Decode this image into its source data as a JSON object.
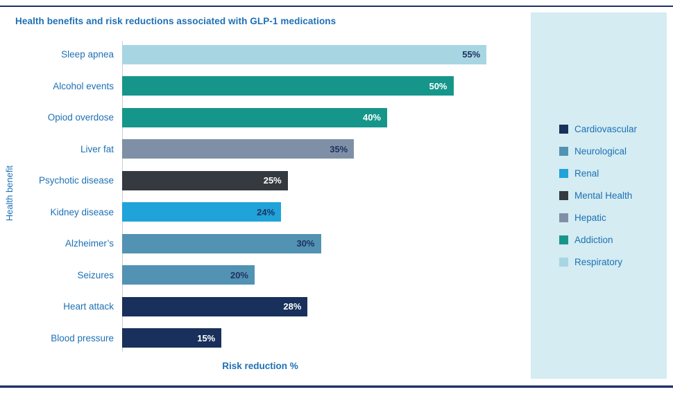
{
  "chart_data": {
    "type": "bar",
    "orientation": "horizontal",
    "title": "Health benefits and risk reductions associated with GLP-1 medications",
    "xlabel": "Risk reduction %",
    "ylabel": "Health benefit",
    "xlim": [
      0,
      60
    ],
    "grid": false,
    "legend_position": "right",
    "categories": [
      "Sleep apnea",
      "Alcohol events",
      "Opiod overdose",
      "Liver fat",
      "Psychotic disease",
      "Kidney disease",
      "Alzheimer’s",
      "Seizures",
      "Heart attack",
      "Blood pressure"
    ],
    "values": [
      55,
      50,
      40,
      35,
      25,
      24,
      30,
      20,
      28,
      15
    ],
    "value_labels": [
      "55%",
      "50%",
      "40%",
      "35%",
      "25%",
      "24%",
      "30%",
      "20%",
      "28%",
      "15%"
    ],
    "bar_groups": [
      "Respiratory",
      "Addiction",
      "Addiction",
      "Hepatic",
      "Mental Health",
      "Renal",
      "Neurological",
      "Neurological",
      "Cardiovascular",
      "Cardiovascular"
    ],
    "value_label_style": [
      "dark",
      "light",
      "light",
      "dark",
      "light",
      "dark",
      "dark",
      "dark",
      "light",
      "light"
    ],
    "colors_by_group": {
      "Cardiovascular": "#18305b",
      "Neurological": "#5292b3",
      "Renal": "#1fa3d9",
      "Mental Health": "#343a40",
      "Hepatic": "#7f90a6",
      "Addiction": "#16968b",
      "Respiratory": "#a8d5e2"
    },
    "legend": [
      {
        "label": "Cardiovascular",
        "color": "#18305b"
      },
      {
        "label": "Neurological",
        "color": "#5292b3"
      },
      {
        "label": "Renal",
        "color": "#1fa3d9"
      },
      {
        "label": "Mental Health",
        "color": "#343a40"
      },
      {
        "label": "Hepatic",
        "color": "#7f90a6"
      },
      {
        "label": "Addiction",
        "color": "#16968b"
      },
      {
        "label": "Respiratory",
        "color": "#a8d5e2"
      }
    ]
  },
  "theme": {
    "accent_blue": "#1d70b5",
    "rule_navy": "#1e3263",
    "legend_panel_bg": "#d4ecf2",
    "axis_line_color": "#c9cdd2",
    "value_dark": "#1e3263",
    "value_light": "#ffffff"
  }
}
